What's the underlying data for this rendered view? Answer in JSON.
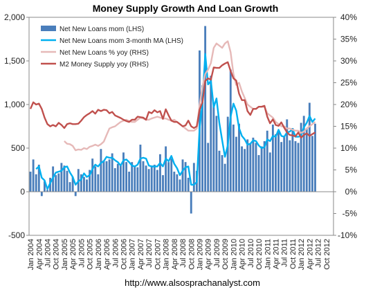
{
  "chart_data": {
    "type": "bar",
    "title": "Money Supply Growth And Loan Growth",
    "source": "http://www.alsosprachanalyst.com",
    "left_axis": {
      "ylim": [
        -500,
        2000
      ],
      "ticks": [
        -500,
        0,
        500,
        1000,
        1500,
        2000
      ],
      "tick_labels": [
        "-500",
        "0",
        "500",
        "1,000",
        "1,500",
        "2,000"
      ]
    },
    "right_axis": {
      "ylim": [
        -10,
        40
      ],
      "ticks": [
        -10,
        -5,
        0,
        5,
        10,
        15,
        20,
        25,
        30,
        35,
        40
      ],
      "tick_labels": [
        "-10%",
        "-5%",
        "0%",
        "5%",
        "10%",
        "15%",
        "20%",
        "25%",
        "30%",
        "35%",
        "40%"
      ]
    },
    "x_labels": [
      "Jan 2004",
      "Apr 2004",
      "Jul 2004",
      "Oct 2004",
      "Jan 2005",
      "Apr 2005",
      "Jul 2005",
      "Oct 2005",
      "Jan 2006",
      "Apr 2006",
      "Jul 2006",
      "Oct 2006",
      "Jan 2007",
      "Apr 2007",
      "Jul 2007",
      "Oct 2007",
      "Jan 2008",
      "Apr 2008",
      "Jul 2008",
      "Oct 2008",
      "Jan 2009",
      "Apr 2009",
      "Jul 2009",
      "Oct 2009",
      "Jan 2010",
      "Apr 2010",
      "Jul 2010",
      "Oct 2010",
      "Jan 2011",
      "Apr 2011",
      "Jul 2011",
      "Oct 2011",
      "Jan 2012",
      "Apr 2012",
      "Jul 2012",
      "Oct 2012"
    ],
    "legend_position": "top-left",
    "series": [
      {
        "name": "Net New Loans mom (LHS)",
        "type": "bar",
        "axis": "left",
        "color": "#4a7ebb",
        "x": [
          "2004-01",
          "2004-02",
          "2004-03",
          "2004-04",
          "2004-05",
          "2004-06",
          "2004-07",
          "2004-08",
          "2004-09",
          "2004-10",
          "2004-11",
          "2004-12",
          "2005-01",
          "2005-02",
          "2005-03",
          "2005-04",
          "2005-05",
          "2005-06",
          "2005-07",
          "2005-08",
          "2005-09",
          "2005-10",
          "2005-11",
          "2005-12",
          "2006-01",
          "2006-02",
          "2006-03",
          "2006-04",
          "2006-05",
          "2006-06",
          "2006-07",
          "2006-08",
          "2006-09",
          "2006-10",
          "2006-11",
          "2006-12",
          "2007-01",
          "2007-02",
          "2007-03",
          "2007-04",
          "2007-05",
          "2007-06",
          "2007-07",
          "2007-08",
          "2007-09",
          "2007-10",
          "2007-11",
          "2007-12",
          "2008-01",
          "2008-02",
          "2008-03",
          "2008-04",
          "2008-05",
          "2008-06",
          "2008-07",
          "2008-08",
          "2008-09",
          "2008-10",
          "2008-11",
          "2008-12",
          "2009-01",
          "2009-02",
          "2009-03",
          "2009-04",
          "2009-05",
          "2009-06",
          "2009-07",
          "2009-08",
          "2009-09",
          "2009-10",
          "2009-11",
          "2009-12",
          "2010-01",
          "2010-02",
          "2010-03",
          "2010-04",
          "2010-05",
          "2010-06",
          "2010-07",
          "2010-08",
          "2010-09",
          "2010-10",
          "2010-11",
          "2010-12",
          "2011-01",
          "2011-02",
          "2011-03",
          "2011-04",
          "2011-05",
          "2011-06",
          "2011-07",
          "2011-08",
          "2011-09",
          "2011-10",
          "2011-11",
          "2011-12",
          "2012-01",
          "2012-02",
          "2012-03",
          "2012-04",
          "2012-05",
          "2012-06"
        ],
        "values": [
          230,
          370,
          200,
          310,
          -50,
          120,
          20,
          160,
          290,
          190,
          210,
          330,
          300,
          240,
          110,
          170,
          -50,
          260,
          200,
          170,
          140,
          250,
          380,
          290,
          200,
          490,
          360,
          350,
          370,
          440,
          270,
          320,
          310,
          450,
          340,
          230,
          340,
          300,
          280,
          540,
          350,
          300,
          260,
          300,
          310,
          250,
          430,
          190,
          520,
          340,
          380,
          230,
          200,
          140,
          370,
          340,
          160,
          -250,
          330,
          240,
          1620,
          1220,
          1900,
          560,
          1330,
          1020,
          870,
          470,
          420,
          320,
          860,
          1400,
          770,
          630,
          780,
          520,
          490,
          600,
          550,
          620,
          560,
          420,
          520,
          580,
          700,
          450,
          770,
          660,
          690,
          570,
          640,
          830,
          590,
          730,
          580,
          560,
          790,
          870,
          720,
          1020,
          640,
          780
        ]
      },
      {
        "name": "Net New Loans mom 3-month MA (LHS)",
        "type": "line",
        "axis": "left",
        "color": "#00b0f0",
        "x": [
          "2004-01",
          "2004-02",
          "2004-03",
          "2004-04",
          "2004-05",
          "2004-06",
          "2004-07",
          "2004-08",
          "2004-09",
          "2004-10",
          "2004-11",
          "2004-12",
          "2005-01",
          "2005-02",
          "2005-03",
          "2005-04",
          "2005-05",
          "2005-06",
          "2005-07",
          "2005-08",
          "2005-09",
          "2005-10",
          "2005-11",
          "2005-12",
          "2006-01",
          "2006-02",
          "2006-03",
          "2006-04",
          "2006-05",
          "2006-06",
          "2006-07",
          "2006-08",
          "2006-09",
          "2006-10",
          "2006-11",
          "2006-12",
          "2007-01",
          "2007-02",
          "2007-03",
          "2007-04",
          "2007-05",
          "2007-06",
          "2007-07",
          "2007-08",
          "2007-09",
          "2007-10",
          "2007-11",
          "2007-12",
          "2008-01",
          "2008-02",
          "2008-03",
          "2008-04",
          "2008-05",
          "2008-06",
          "2008-07",
          "2008-08",
          "2008-09",
          "2008-10",
          "2008-11",
          "2008-12",
          "2009-01",
          "2009-02",
          "2009-03",
          "2009-04",
          "2009-05",
          "2009-06",
          "2009-07",
          "2009-08",
          "2009-09",
          "2009-10",
          "2009-11",
          "2009-12",
          "2010-01",
          "2010-02",
          "2010-03",
          "2010-04",
          "2010-05",
          "2010-06",
          "2010-07",
          "2010-08",
          "2010-09",
          "2010-10",
          "2010-11",
          "2010-12",
          "2011-01",
          "2011-02",
          "2011-03",
          "2011-04",
          "2011-05",
          "2011-06",
          "2011-07",
          "2011-08",
          "2011-09",
          "2011-10",
          "2011-11",
          "2011-12",
          "2012-01",
          "2012-02",
          "2012-03",
          "2012-04",
          "2012-05",
          "2012-06"
        ],
        "values": [
          null,
          null,
          260,
          290,
          160,
          130,
          30,
          100,
          160,
          220,
          230,
          240,
          280,
          290,
          220,
          170,
          80,
          120,
          140,
          210,
          170,
          190,
          260,
          310,
          290,
          330,
          350,
          400,
          390,
          390,
          360,
          340,
          300,
          360,
          370,
          340,
          300,
          290,
          310,
          380,
          390,
          380,
          300,
          290,
          290,
          290,
          330,
          290,
          380,
          350,
          410,
          320,
          270,
          190,
          240,
          280,
          290,
          80,
          80,
          110,
          730,
          1020,
          1580,
          1230,
          1270,
          970,
          1070,
          790,
          590,
          400,
          530,
          860,
          1010,
          930,
          730,
          640,
          600,
          540,
          550,
          590,
          580,
          530,
          500,
          510,
          600,
          580,
          640,
          630,
          710,
          640,
          630,
          680,
          690,
          720,
          630,
          630,
          640,
          740,
          790,
          870,
          800,
          840
        ]
      },
      {
        "name": "Net New Loans % yoy (RHS)",
        "type": "line",
        "axis": "right",
        "color": "#e6b9b8",
        "x": [
          "2005-01",
          "2005-02",
          "2005-03",
          "2005-04",
          "2005-05",
          "2005-06",
          "2005-07",
          "2005-08",
          "2005-09",
          "2005-10",
          "2005-11",
          "2005-12",
          "2006-01",
          "2006-02",
          "2006-03",
          "2006-04",
          "2006-05",
          "2006-06",
          "2006-07",
          "2006-08",
          "2006-09",
          "2006-10",
          "2006-11",
          "2006-12",
          "2007-01",
          "2007-02",
          "2007-03",
          "2007-04",
          "2007-05",
          "2007-06",
          "2007-07",
          "2007-08",
          "2007-09",
          "2007-10",
          "2007-11",
          "2007-12",
          "2008-01",
          "2008-02",
          "2008-03",
          "2008-04",
          "2008-05",
          "2008-06",
          "2008-07",
          "2008-08",
          "2008-09",
          "2008-10",
          "2008-11",
          "2008-12",
          "2009-01",
          "2009-02",
          "2009-03",
          "2009-04",
          "2009-05",
          "2009-06",
          "2009-07",
          "2009-08",
          "2009-09",
          "2009-10",
          "2009-11",
          "2009-12",
          "2010-01",
          "2010-02",
          "2010-03",
          "2010-04",
          "2010-05",
          "2010-06",
          "2010-07",
          "2010-08",
          "2010-09",
          "2010-10",
          "2010-11",
          "2010-12",
          "2011-01",
          "2011-02",
          "2011-03",
          "2011-04",
          "2011-05",
          "2011-06",
          "2011-07",
          "2011-08",
          "2011-09",
          "2011-10",
          "2011-11",
          "2011-12",
          "2012-01",
          "2012-02",
          "2012-03",
          "2012-04",
          "2012-05",
          "2012-06"
        ],
        "values": [
          11.6,
          11.0,
          10.9,
          10.5,
          9.5,
          9.7,
          9.6,
          10.0,
          9.8,
          10.3,
          10.5,
          10.8,
          10.5,
          10.9,
          11.5,
          13.0,
          14.5,
          14.8,
          15.0,
          15.5,
          16.0,
          16.3,
          16.5,
          16.2,
          16.0,
          16.0,
          16.5,
          17.0,
          16.8,
          16.5,
          16.5,
          16.8,
          17.0,
          17.2,
          17.0,
          16.8,
          16.8,
          16.5,
          16.3,
          16.5,
          16.0,
          15.5,
          15.0,
          14.5,
          14.0,
          14.0,
          14.0,
          14.5,
          20.0,
          24.0,
          27.0,
          28.0,
          29.5,
          33.0,
          34.0,
          33.5,
          33.0,
          34.0,
          34.5,
          32.0,
          27.0,
          24.5,
          25.0,
          23.0,
          21.5,
          20.0,
          19.5,
          19.0,
          19.0,
          19.5,
          19.5,
          19.5,
          18.0,
          17.5,
          17.0,
          16.0,
          15.5,
          15.0,
          15.0,
          14.5,
          14.5,
          14.2,
          14.0,
          14.0,
          13.5,
          13.8,
          14.5,
          15.0,
          15.5,
          16.0
        ]
      },
      {
        "name": "M2 Money Supply yoy (RHS)",
        "type": "line",
        "axis": "right",
        "color": "#c0504d",
        "x": [
          "2004-01",
          "2004-02",
          "2004-03",
          "2004-04",
          "2004-05",
          "2004-06",
          "2004-07",
          "2004-08",
          "2004-09",
          "2004-10",
          "2004-11",
          "2004-12",
          "2005-01",
          "2005-02",
          "2005-03",
          "2005-04",
          "2005-05",
          "2005-06",
          "2005-07",
          "2005-08",
          "2005-09",
          "2005-10",
          "2005-11",
          "2005-12",
          "2006-01",
          "2006-02",
          "2006-03",
          "2006-04",
          "2006-05",
          "2006-06",
          "2006-07",
          "2006-08",
          "2006-09",
          "2006-10",
          "2006-11",
          "2006-12",
          "2007-01",
          "2007-02",
          "2007-03",
          "2007-04",
          "2007-05",
          "2007-06",
          "2007-07",
          "2007-08",
          "2007-09",
          "2007-10",
          "2007-11",
          "2007-12",
          "2008-01",
          "2008-02",
          "2008-03",
          "2008-04",
          "2008-05",
          "2008-06",
          "2008-07",
          "2008-08",
          "2008-09",
          "2008-10",
          "2008-11",
          "2008-12",
          "2009-01",
          "2009-02",
          "2009-03",
          "2009-04",
          "2009-05",
          "2009-06",
          "2009-07",
          "2009-08",
          "2009-09",
          "2009-10",
          "2009-11",
          "2009-12",
          "2010-01",
          "2010-02",
          "2010-03",
          "2010-04",
          "2010-05",
          "2010-06",
          "2010-07",
          "2010-08",
          "2010-09",
          "2010-10",
          "2010-11",
          "2010-12",
          "2011-01",
          "2011-02",
          "2011-03",
          "2011-04",
          "2011-05",
          "2011-06",
          "2011-07",
          "2011-08",
          "2011-09",
          "2011-10",
          "2011-11",
          "2011-12",
          "2012-01",
          "2012-02",
          "2012-03",
          "2012-04",
          "2012-05",
          "2012-06"
        ],
        "values": [
          19.0,
          20.5,
          20.0,
          20.2,
          19.0,
          17.0,
          15.5,
          15.0,
          15.3,
          15.0,
          15.8,
          15.3,
          14.6,
          15.5,
          15.7,
          15.5,
          15.5,
          15.6,
          16.3,
          17.1,
          17.6,
          18.0,
          18.5,
          17.9,
          18.8,
          18.5,
          18.8,
          18.7,
          18.0,
          18.3,
          17.5,
          17.2,
          16.9,
          16.5,
          16.2,
          16.0,
          16.5,
          16.5,
          17.2,
          17.1,
          17.0,
          16.5,
          18.3,
          18.0,
          18.7,
          18.2,
          18.5,
          16.7,
          18.9,
          17.5,
          16.3,
          16.0,
          16.0,
          15.5,
          15.0,
          15.2,
          16.3,
          15.0,
          14.6,
          15.0,
          18.8,
          20.5,
          25.4,
          26.0,
          25.7,
          28.5,
          28.4,
          28.4,
          29.0,
          29.4,
          29.7,
          27.7,
          26.0,
          25.5,
          22.5,
          21.0,
          21.0,
          18.5,
          17.6,
          19.0,
          19.0,
          19.5,
          19.5,
          19.7,
          17.2,
          15.7,
          16.6,
          15.3,
          15.1,
          15.9,
          14.7,
          13.6,
          13.0,
          12.9,
          12.7,
          13.6,
          12.4,
          13.0,
          13.4,
          12.8,
          13.2,
          13.6
        ]
      }
    ],
    "annotations": []
  }
}
